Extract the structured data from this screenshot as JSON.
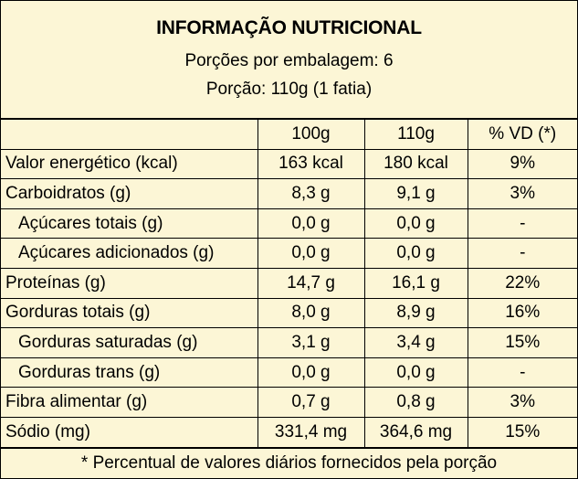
{
  "header": {
    "title": "INFORMAÇÃO NUTRICIONAL",
    "servings_per_package": "Porções por embalagem: 6",
    "serving_size": "Porção: 110g (1 fatia)"
  },
  "table": {
    "columns": [
      "",
      "100g",
      "110g",
      "% VD (*)"
    ],
    "rows": [
      {
        "name": "Valor energético (kcal)",
        "per100": "163 kcal",
        "per110": "180 kcal",
        "vd": "9%",
        "indent": false
      },
      {
        "name": "Carboidratos (g)",
        "per100": "8,3 g",
        "per110": "9,1 g",
        "vd": "3%",
        "indent": false
      },
      {
        "name": "Açúcares totais (g)",
        "per100": "0,0 g",
        "per110": "0,0 g",
        "vd": "-",
        "indent": true
      },
      {
        "name": "Açúcares adicionados (g)",
        "per100": "0,0 g",
        "per110": "0,0 g",
        "vd": "-",
        "indent": true
      },
      {
        "name": "Proteínas (g)",
        "per100": "14,7 g",
        "per110": "16,1 g",
        "vd": "22%",
        "indent": false
      },
      {
        "name": "Gorduras totais (g)",
        "per100": "8,0 g",
        "per110": "8,9 g",
        "vd": "16%",
        "indent": false
      },
      {
        "name": "Gorduras saturadas (g)",
        "per100": "3,1 g",
        "per110": "3,4 g",
        "vd": "15%",
        "indent": true
      },
      {
        "name": "Gorduras trans (g)",
        "per100": "0,0 g",
        "per110": "0,0 g",
        "vd": "-",
        "indent": true
      },
      {
        "name": "Fibra alimentar (g)",
        "per100": "0,7 g",
        "per110": "0,8 g",
        "vd": "3%",
        "indent": false
      },
      {
        "name": "Sódio (mg)",
        "per100": "331,4 mg",
        "per110": "364,6 mg",
        "vd": "15%",
        "indent": false
      }
    ]
  },
  "footnote": "* Percentual de valores diários fornecidos pela porção",
  "colors": {
    "background": "#fcf6d6",
    "border": "#000000",
    "text": "#000000"
  }
}
